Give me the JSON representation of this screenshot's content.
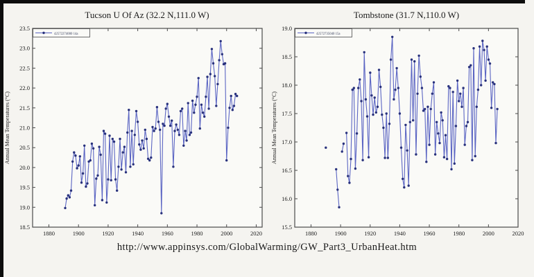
{
  "footer": {
    "url": "http://www.appinsys.com/GlobalWarming/GW_Part3_UrbanHeat.htm"
  },
  "palette": {
    "background": "#f5f4f0",
    "plot_fill": "#fafaf7",
    "axis_color": "#4a4a4a",
    "text_color": "#1a1a1a",
    "border_bar_color": "#0d0d0d"
  },
  "chart_data": [
    {
      "type": "line",
      "title": "Tucson U Of Az (32.2 N,111.0 W)",
      "xlabel": "",
      "ylabel": "Annual Mean Temperatures (°C)",
      "xlim": [
        1869,
        2024
      ],
      "ylim": [
        18.5,
        23.5
      ],
      "ytick_step": 0.5,
      "xticks": [
        1880,
        1900,
        1920,
        1940,
        1960,
        1980,
        2000,
        2020
      ],
      "grid": false,
      "legend_position": "top-left",
      "legend_label": "42572274000 14a",
      "line_color": "#5b65c3",
      "marker_color": "#28317c",
      "points": [
        [
          1891,
          18.98
        ],
        [
          1892,
          19.22
        ],
        [
          1893,
          19.3
        ],
        [
          1894,
          19.25
        ],
        [
          1895,
          19.42
        ],
        [
          1896,
          20.15
        ],
        [
          1897,
          20.38
        ],
        [
          1898,
          20.3
        ],
        [
          1899,
          19.98
        ],
        [
          1900,
          20.05
        ],
        [
          1901,
          20.28
        ],
        [
          1902,
          19.62
        ],
        [
          1903,
          19.85
        ],
        [
          1904,
          20.55
        ],
        [
          1905,
          19.52
        ],
        [
          1906,
          19.6
        ],
        [
          1907,
          20.15
        ],
        [
          1908,
          20.18
        ],
        [
          1909,
          20.6
        ],
        [
          1910,
          20.48
        ],
        [
          1911,
          19.05
        ],
        [
          1912,
          19.72
        ],
        [
          1913,
          19.8
        ],
        [
          1914,
          20.52
        ],
        [
          1915,
          20.32
        ],
        [
          1916,
          19.18
        ],
        [
          1917,
          20.92
        ],
        [
          1918,
          20.85
        ],
        [
          1919,
          19.12
        ],
        [
          1920,
          19.7
        ],
        [
          1921,
          20.8
        ],
        [
          1922,
          19.68
        ],
        [
          1923,
          20.72
        ],
        [
          1924,
          20.65
        ],
        [
          1925,
          19.7
        ],
        [
          1926,
          19.42
        ],
        [
          1927,
          20.02
        ],
        [
          1928,
          20.72
        ],
        [
          1929,
          19.95
        ],
        [
          1930,
          20.38
        ],
        [
          1931,
          20.52
        ],
        [
          1932,
          19.88
        ],
        [
          1933,
          20.88
        ],
        [
          1934,
          21.45
        ],
        [
          1935,
          20.02
        ],
        [
          1936,
          20.92
        ],
        [
          1937,
          20.08
        ],
        [
          1938,
          20.82
        ],
        [
          1939,
          21.42
        ],
        [
          1940,
          21.15
        ],
        [
          1941,
          20.58
        ],
        [
          1942,
          20.45
        ],
        [
          1943,
          20.68
        ],
        [
          1944,
          20.48
        ],
        [
          1945,
          20.95
        ],
        [
          1946,
          20.72
        ],
        [
          1947,
          20.22
        ],
        [
          1948,
          20.18
        ],
        [
          1949,
          20.25
        ],
        [
          1950,
          21.02
        ],
        [
          1951,
          20.92
        ],
        [
          1952,
          20.98
        ],
        [
          1953,
          21.52
        ],
        [
          1954,
          21.15
        ],
        [
          1955,
          20.95
        ],
        [
          1956,
          18.85
        ],
        [
          1957,
          21.1
        ],
        [
          1958,
          21.05
        ],
        [
          1959,
          21.48
        ],
        [
          1960,
          21.6
        ],
        [
          1961,
          21.28
        ],
        [
          1962,
          21.05
        ],
        [
          1963,
          21.18
        ],
        [
          1964,
          20.02
        ],
        [
          1965,
          20.92
        ],
        [
          1966,
          21.08
        ],
        [
          1967,
          20.95
        ],
        [
          1968,
          20.82
        ],
        [
          1969,
          21.42
        ],
        [
          1970,
          21.48
        ],
        [
          1971,
          20.55
        ],
        [
          1972,
          20.92
        ],
        [
          1973,
          20.68
        ],
        [
          1974,
          21.62
        ],
        [
          1975,
          20.82
        ],
        [
          1976,
          20.88
        ],
        [
          1977,
          21.68
        ],
        [
          1978,
          21.38
        ],
        [
          1979,
          21.58
        ],
        [
          1980,
          21.78
        ],
        [
          1981,
          22.25
        ],
        [
          1982,
          20.98
        ],
        [
          1983,
          21.58
        ],
        [
          1984,
          21.38
        ],
        [
          1985,
          21.28
        ],
        [
          1986,
          21.78
        ],
        [
          1987,
          22.28
        ],
        [
          1988,
          21.48
        ],
        [
          1989,
          22.35
        ],
        [
          1990,
          22.98
        ],
        [
          1991,
          22.62
        ],
        [
          1992,
          22.3
        ],
        [
          1993,
          21.55
        ],
        [
          1994,
          22.1
        ],
        [
          1995,
          22.7
        ],
        [
          1996,
          23.18
        ],
        [
          1997,
          22.85
        ],
        [
          1998,
          22.6
        ],
        [
          1999,
          22.62
        ],
        [
          2000,
          20.18
        ],
        [
          2001,
          21.0
        ],
        [
          2002,
          21.5
        ],
        [
          2003,
          21.8
        ],
        [
          2004,
          21.45
        ],
        [
          2005,
          21.55
        ],
        [
          2006,
          21.85
        ],
        [
          2007,
          21.8
        ]
      ]
    },
    {
      "type": "line",
      "title": "Tombstone (31.7 N,110.0 W)",
      "xlabel": "",
      "ylabel": "Annual Mean Temperatures (°C)",
      "xlim": [
        1869,
        2020
      ],
      "ylim": [
        15.5,
        19.0
      ],
      "ytick_step": 0.5,
      "xticks": [
        1880,
        1900,
        1920,
        1940,
        1960,
        1980,
        2000,
        2020
      ],
      "grid": false,
      "legend_position": "top-left",
      "legend_label": "42572735040 15a",
      "line_color": "#5b65c3",
      "marker_color": "#28317c",
      "points": [
        [
          1890,
          16.9
        ],
        [
          1897,
          16.52
        ],
        [
          1898,
          16.16
        ],
        [
          1899,
          15.85
        ],
        [
          1901,
          16.83
        ],
        [
          1902,
          16.97
        ],
        [
          1904,
          17.16
        ],
        [
          1905,
          16.4
        ],
        [
          1906,
          16.28
        ],
        [
          1907,
          16.7
        ],
        [
          1908,
          17.92
        ],
        [
          1909,
          17.95
        ],
        [
          1910,
          16.53
        ],
        [
          1911,
          17.15
        ],
        [
          1912,
          17.95
        ],
        [
          1913,
          18.1
        ],
        [
          1914,
          17.72
        ],
        [
          1915,
          16.68
        ],
        [
          1916,
          18.58
        ],
        [
          1917,
          17.75
        ],
        [
          1918,
          17.45
        ],
        [
          1919,
          16.73
        ],
        [
          1920,
          18.22
        ],
        [
          1921,
          17.82
        ],
        [
          1922,
          17.48
        ],
        [
          1923,
          17.78
        ],
        [
          1924,
          17.52
        ],
        [
          1925,
          17.62
        ],
        [
          1926,
          18.27
        ],
        [
          1927,
          17.97
        ],
        [
          1928,
          17.48
        ],
        [
          1929,
          17.25
        ],
        [
          1930,
          16.72
        ],
        [
          1931,
          17.5
        ],
        [
          1932,
          16.72
        ],
        [
          1933,
          17.32
        ],
        [
          1934,
          18.45
        ],
        [
          1935,
          18.85
        ],
        [
          1936,
          17.75
        ],
        [
          1937,
          17.92
        ],
        [
          1938,
          18.3
        ],
        [
          1939,
          17.95
        ],
        [
          1940,
          17.5
        ],
        [
          1941,
          16.9
        ],
        [
          1942,
          16.35
        ],
        [
          1943,
          16.2
        ],
        [
          1944,
          17.3
        ],
        [
          1945,
          16.85
        ],
        [
          1946,
          16.23
        ],
        [
          1947,
          17.35
        ],
        [
          1948,
          18.45
        ],
        [
          1949,
          17.38
        ],
        [
          1950,
          18.42
        ],
        [
          1951,
          16.78
        ],
        [
          1952,
          17.85
        ],
        [
          1953,
          18.52
        ],
        [
          1954,
          18.15
        ],
        [
          1955,
          17.95
        ],
        [
          1956,
          17.55
        ],
        [
          1957,
          17.58
        ],
        [
          1958,
          16.65
        ],
        [
          1959,
          17.62
        ],
        [
          1960,
          16.95
        ],
        [
          1961,
          17.58
        ],
        [
          1962,
          17.85
        ],
        [
          1963,
          18.05
        ],
        [
          1964,
          16.78
        ],
        [
          1965,
          17.35
        ],
        [
          1966,
          17.15
        ],
        [
          1967,
          16.98
        ],
        [
          1968,
          17.52
        ],
        [
          1969,
          17.38
        ],
        [
          1970,
          16.73
        ],
        [
          1971,
          17.12
        ],
        [
          1972,
          16.7
        ],
        [
          1973,
          17.98
        ],
        [
          1974,
          17.95
        ],
        [
          1975,
          16.52
        ],
        [
          1976,
          17.88
        ],
        [
          1977,
          16.62
        ],
        [
          1978,
          17.28
        ],
        [
          1979,
          18.08
        ],
        [
          1980,
          17.72
        ],
        [
          1981,
          17.85
        ],
        [
          1982,
          17.62
        ],
        [
          1983,
          17.95
        ],
        [
          1984,
          16.95
        ],
        [
          1985,
          17.28
        ],
        [
          1986,
          17.35
        ],
        [
          1987,
          18.32
        ],
        [
          1988,
          18.35
        ],
        [
          1989,
          16.68
        ],
        [
          1990,
          18.65
        ],
        [
          1991,
          16.75
        ],
        [
          1992,
          17.62
        ],
        [
          1993,
          17.92
        ],
        [
          1994,
          18.68
        ],
        [
          1995,
          18.0
        ],
        [
          1996,
          18.78
        ],
        [
          1997,
          18.62
        ],
        [
          1998,
          18.08
        ],
        [
          1999,
          18.68
        ],
        [
          2000,
          18.45
        ],
        [
          2001,
          18.38
        ],
        [
          2002,
          17.6
        ],
        [
          2003,
          18.05
        ],
        [
          2004,
          18.02
        ],
        [
          2005,
          16.98
        ],
        [
          2006,
          17.58
        ]
      ]
    }
  ]
}
